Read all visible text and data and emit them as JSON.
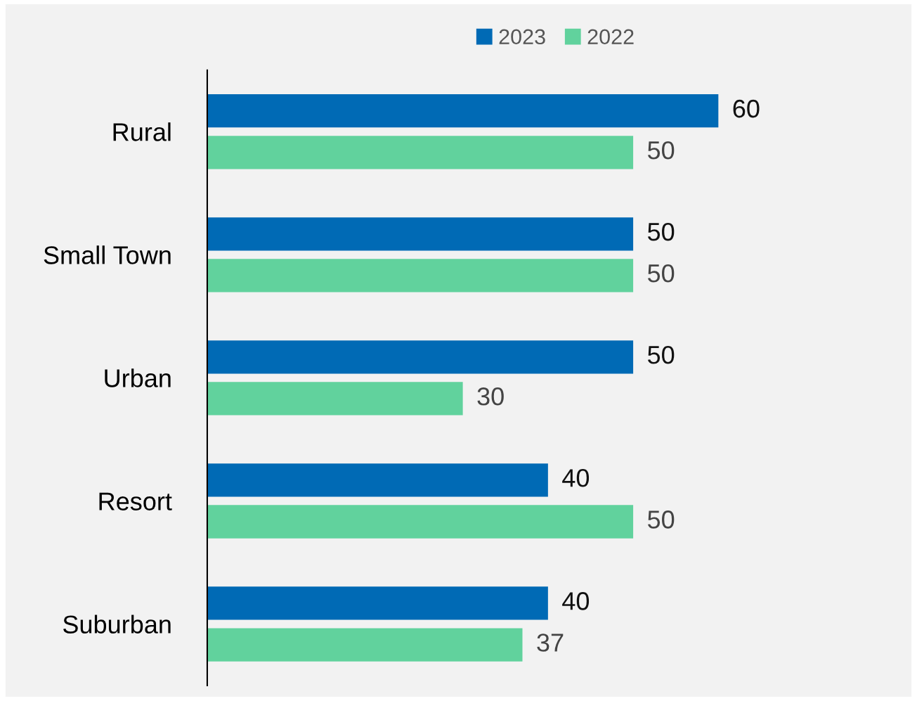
{
  "chart_data": {
    "type": "bar",
    "orientation": "horizontal",
    "categories": [
      "Rural",
      "Small Town",
      "Urban",
      "Resort",
      "Suburban"
    ],
    "series": [
      {
        "name": "2023",
        "color": "#006ab5",
        "values": [
          60,
          50,
          50,
          40,
          40
        ]
      },
      {
        "name": "2022",
        "color": "#61d29d",
        "values": [
          50,
          50,
          30,
          50,
          37
        ]
      }
    ],
    "data_labels": true,
    "legend": "top",
    "grid": false,
    "tick_labels": "y"
  }
}
